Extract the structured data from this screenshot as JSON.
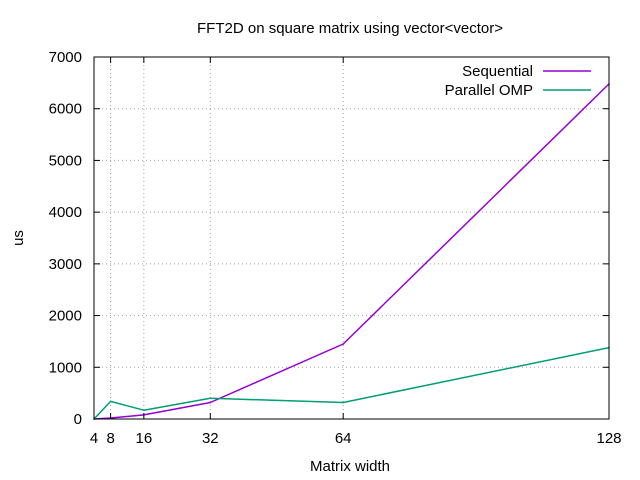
{
  "chart_data": {
    "type": "line",
    "title": "FFT2D on square matrix using vector<vector>",
    "xlabel": "Matrix width",
    "ylabel": "us",
    "xlim": [
      4,
      128
    ],
    "ylim": [
      0,
      7000
    ],
    "x_ticks": [
      4,
      8,
      16,
      32,
      64,
      128
    ],
    "y_ticks": [
      0,
      1000,
      2000,
      3000,
      4000,
      5000,
      6000,
      7000
    ],
    "grid": true,
    "legend_position": "top-right",
    "x": [
      4,
      8,
      16,
      32,
      64,
      128
    ],
    "series": [
      {
        "name": "Sequential",
        "color": "#9400d3",
        "values": [
          0,
          20,
          80,
          320,
          1450,
          6480
        ]
      },
      {
        "name": "Parallel OMP",
        "color": "#009e73",
        "values": [
          0,
          340,
          170,
          400,
          320,
          1380
        ]
      }
    ]
  }
}
